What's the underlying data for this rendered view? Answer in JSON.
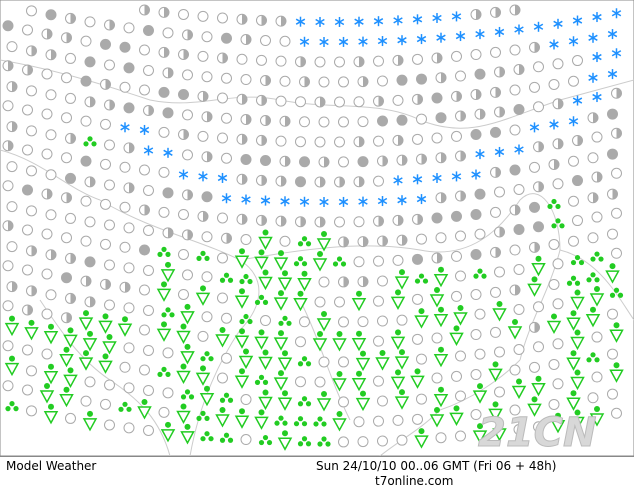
{
  "footer": {
    "title": "Model Weather",
    "datetime": "Sun 24/10/10 00..06 GMT (Fri 06 + 48h)",
    "source": "t7online.com"
  },
  "watermark": "21CN"
}
